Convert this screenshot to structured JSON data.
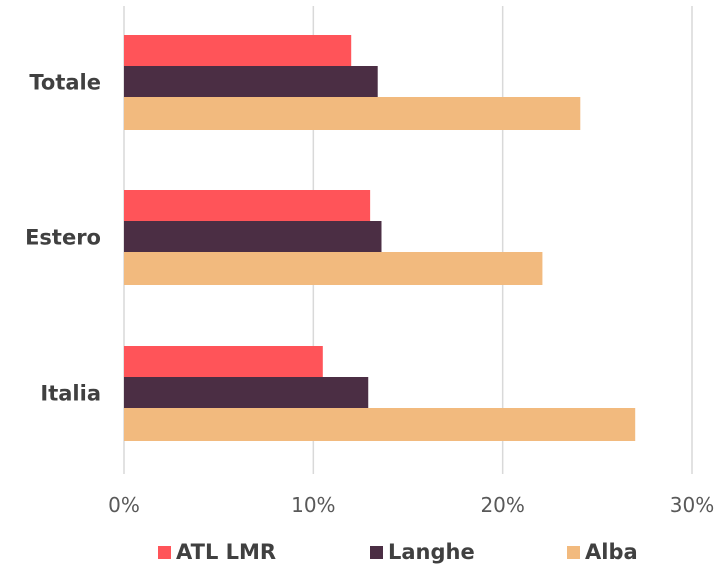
{
  "chart_data": {
    "type": "bar",
    "orientation": "horizontal",
    "categories": [
      "Totale",
      "Estero",
      "Italia"
    ],
    "series": [
      {
        "name": "ATL LMR",
        "color": "#ff5459",
        "values": [
          12.0,
          13.0,
          10.5
        ]
      },
      {
        "name": "Langhe",
        "color": "#4b2e44",
        "values": [
          13.4,
          13.6,
          12.9
        ]
      },
      {
        "name": "Alba",
        "color": "#f2ba7e",
        "values": [
          24.1,
          22.1,
          27.0
        ]
      }
    ],
    "xlim": [
      0,
      30
    ],
    "xticks": [
      "0%",
      "10%",
      "20%",
      "30%"
    ],
    "grid": true,
    "legend_position": "bottom",
    "title": "",
    "xlabel": "",
    "ylabel": ""
  }
}
